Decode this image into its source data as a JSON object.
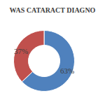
{
  "chart_data": {
    "type": "pie",
    "title": "WAS CATARACT DIAGNO",
    "values": [
      63,
      37
    ],
    "value_labels": [
      "63%",
      "37%"
    ],
    "colors": [
      "#4f81bd",
      "#c0504d"
    ],
    "data_labels": true
  }
}
